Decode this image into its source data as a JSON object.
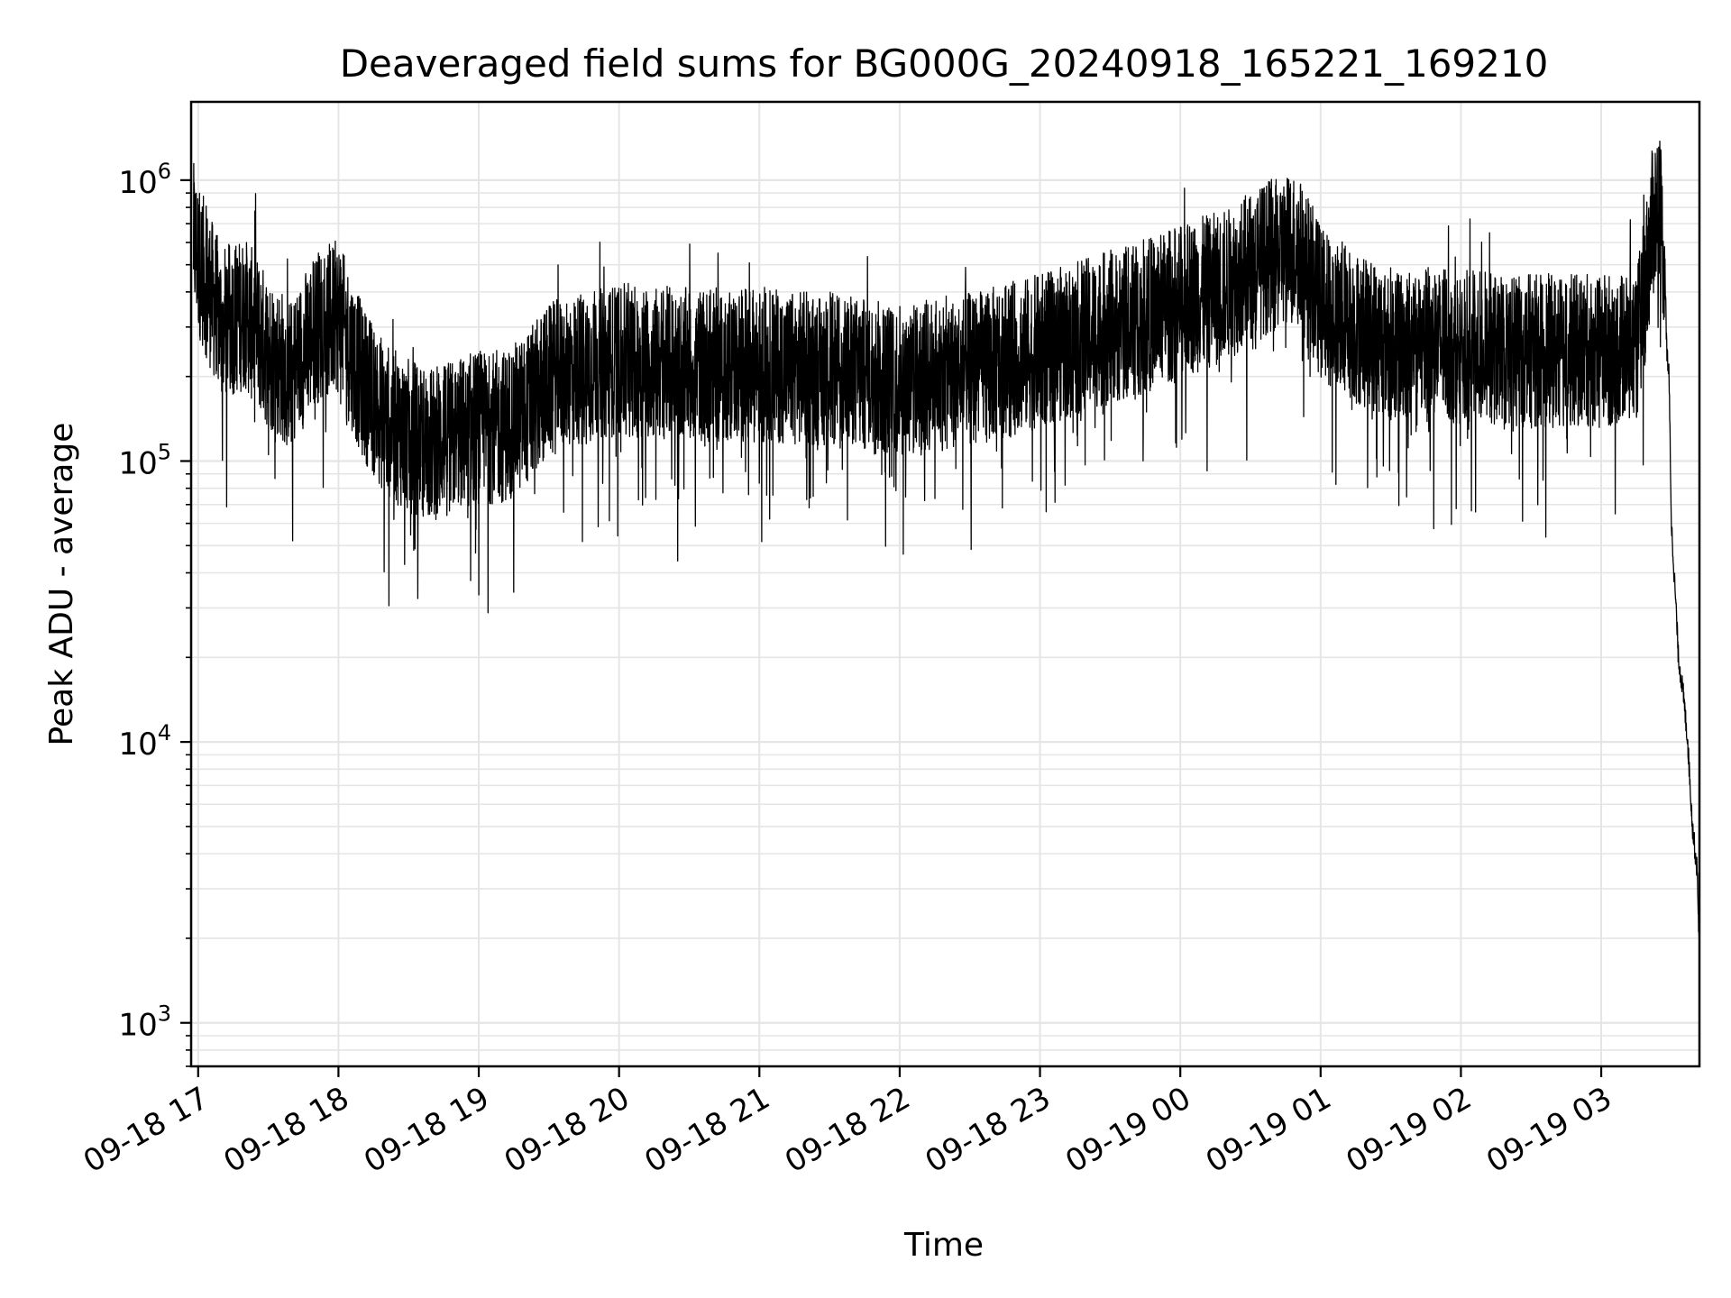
{
  "chart_data": {
    "type": "line",
    "title": "Deaveraged field sums for BG000G_20240918_165221_169210",
    "xlabel": "Time",
    "ylabel": "Peak ADU - average",
    "y_scale": "log",
    "ylim": [
      700,
      1900000
    ],
    "xlim": [
      "2024-09-18 16:57",
      "2024-09-19 03:42"
    ],
    "grid": true,
    "line_color": "#000000",
    "grid_color": "#e5e5e5",
    "x_ticks": [
      {
        "time": "2024-09-18 17:00",
        "label": "09-18 17"
      },
      {
        "time": "2024-09-18 18:00",
        "label": "09-18 18"
      },
      {
        "time": "2024-09-18 19:00",
        "label": "09-18 19"
      },
      {
        "time": "2024-09-18 20:00",
        "label": "09-18 20"
      },
      {
        "time": "2024-09-18 21:00",
        "label": "09-18 21"
      },
      {
        "time": "2024-09-18 22:00",
        "label": "09-18 22"
      },
      {
        "time": "2024-09-18 23:00",
        "label": "09-18 23"
      },
      {
        "time": "2024-09-19 00:00",
        "label": "09-19 00"
      },
      {
        "time": "2024-09-19 01:00",
        "label": "09-19 01"
      },
      {
        "time": "2024-09-19 02:00",
        "label": "09-19 02"
      },
      {
        "time": "2024-09-19 03:00",
        "label": "09-19 03"
      }
    ],
    "y_ticks": [
      {
        "value": 1000,
        "base": "10",
        "exp": "3"
      },
      {
        "value": 10000,
        "base": "10",
        "exp": "4"
      },
      {
        "value": 100000,
        "base": "10",
        "exp": "5"
      },
      {
        "value": 1000000,
        "base": "10",
        "exp": "6"
      }
    ],
    "series": [
      {
        "points": [
          [
            "2024-09-18 16:58",
            700000
          ],
          [
            "2024-09-18 17:00",
            600000
          ],
          [
            "2024-09-18 17:10",
            350000
          ],
          [
            "2024-09-18 17:20",
            380000
          ],
          [
            "2024-09-18 17:30",
            280000
          ],
          [
            "2024-09-18 17:40",
            230000
          ],
          [
            "2024-09-18 17:50",
            340000
          ],
          [
            "2024-09-18 18:00",
            370000
          ],
          [
            "2024-09-18 18:10",
            220000
          ],
          [
            "2024-09-18 18:20",
            160000
          ],
          [
            "2024-09-18 18:30",
            140000
          ],
          [
            "2024-09-18 18:40",
            130000
          ],
          [
            "2024-09-18 18:50",
            140000
          ],
          [
            "2024-09-18 19:00",
            150000
          ],
          [
            "2024-09-18 19:10",
            150000
          ],
          [
            "2024-09-18 19:20",
            170000
          ],
          [
            "2024-09-18 19:30",
            220000
          ],
          [
            "2024-09-18 19:40",
            240000
          ],
          [
            "2024-09-18 19:50",
            250000
          ],
          [
            "2024-09-18 20:00",
            260000
          ],
          [
            "2024-09-18 20:30",
            250000
          ],
          [
            "2024-09-18 21:00",
            250000
          ],
          [
            "2024-09-18 21:30",
            240000
          ],
          [
            "2024-09-18 22:00",
            220000
          ],
          [
            "2024-09-18 22:30",
            240000
          ],
          [
            "2024-09-18 23:00",
            280000
          ],
          [
            "2024-09-18 23:20",
            320000
          ],
          [
            "2024-09-18 23:40",
            360000
          ],
          [
            "2024-09-19 00:00",
            420000
          ],
          [
            "2024-09-19 00:10",
            450000
          ],
          [
            "2024-09-19 00:20",
            480000
          ],
          [
            "2024-09-19 00:30",
            550000
          ],
          [
            "2024-09-19 00:40",
            620000
          ],
          [
            "2024-09-19 00:50",
            650000
          ],
          [
            "2024-09-19 01:00",
            420000
          ],
          [
            "2024-09-19 01:15",
            340000
          ],
          [
            "2024-09-19 01:30",
            300000
          ],
          [
            "2024-09-19 02:00",
            290000
          ],
          [
            "2024-09-19 02:30",
            280000
          ],
          [
            "2024-09-19 03:00",
            280000
          ],
          [
            "2024-09-19 03:15",
            290000
          ],
          [
            "2024-09-19 03:18",
            420000
          ],
          [
            "2024-09-19 03:22",
            800000
          ],
          [
            "2024-09-19 03:25",
            1000000
          ],
          [
            "2024-09-19 03:27",
            600000
          ],
          [
            "2024-09-19 03:28",
            250000
          ],
          [
            "2024-09-19 03:29",
            200000
          ],
          [
            "2024-09-19 03:30",
            60000
          ],
          [
            "2024-09-19 03:32",
            30000
          ],
          [
            "2024-09-19 03:33",
            20000
          ],
          [
            "2024-09-19 03:35",
            15000
          ],
          [
            "2024-09-19 03:37",
            10000
          ],
          [
            "2024-09-19 03:39",
            5000
          ],
          [
            "2024-09-19 03:41",
            3500
          ],
          [
            "2024-09-19 03:42",
            1800
          ]
        ]
      }
    ]
  }
}
